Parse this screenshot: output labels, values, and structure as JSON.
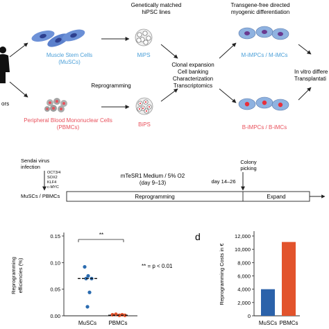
{
  "colors": {
    "musc_blue": "#4a9fd8",
    "pbmc_red": "#e8505b",
    "cell_blue": "#2d54a8",
    "bar_blue": "#2b62aa",
    "bar_orange": "#e2532c",
    "dot_blue": "#2b6cb0",
    "dot_orange": "#e2532c",
    "grey_cell": "#a8a8a8"
  },
  "top": {
    "matched_line1": "Genetically matched",
    "matched_line2": "hiPSC lines",
    "transgene_line1": "Transgene-free directed",
    "transgene_line2": "myogenic differentiation",
    "donors_partial": "ors",
    "musc_line1": "Muscle Stem Cells",
    "musc_line2": "(MuSCs)",
    "pbmc_line1": "Peripheral Blood Mononuclear Cells",
    "pbmc_line2": "(PBMCs)",
    "reprogramming": "Reprogramming",
    "mips": "MiPS",
    "bips": "BiPS",
    "steps": [
      "Clonal expansion",
      "Cell banking",
      "Characterization",
      "Transcriptomics"
    ],
    "m_impc": "M-iMPCs / M-iMCs",
    "b_impc": "B-iMPCs / B-iMCs",
    "invitro_line1": "In vitro differe",
    "invitro_line2": "Transplantati"
  },
  "timeline": {
    "sendai_line1": "Sendai virus",
    "sendai_line2": "infection",
    "factors": [
      "OCT3/4",
      "SOX2",
      "KLF4",
      "c-MYC"
    ],
    "medium_line1": "mTeSR1 Medium / 5% O2",
    "medium_line2": "(day 9–13)",
    "colony_line1": "Colony",
    "colony_line2": "picking",
    "days": "day 14–26",
    "start_label": "MuSCs / PBMCs",
    "seg1": "Reprogramming",
    "seg2": "Expand"
  },
  "scatter": {
    "ylabel_line1": "Reprogramming",
    "ylabel_line2": "efficiencies (%)",
    "yticks": [
      "0.00",
      "0.05",
      "0.10",
      "0.15"
    ],
    "categories": [
      "MuSCs",
      "PBMCs"
    ],
    "sig_mark": "**",
    "legend": "** = p < 0.01"
  },
  "bars": {
    "panel_letter": "d",
    "ylabel": "Reprogramming Costs in €",
    "yticks": [
      "0",
      "2,000",
      "4,000",
      "6,000",
      "8,000",
      "10,000",
      "12,000"
    ],
    "categories": [
      "MuSCs",
      "PBMCs"
    ]
  },
  "chart_data": [
    {
      "type": "scatter",
      "ylabel": "Reprogramming efficiencies (%)",
      "categories": [
        "MuSCs",
        "PBMCs"
      ],
      "ylim": [
        0,
        0.15
      ],
      "series": [
        {
          "values": [
            0.092,
            0.075,
            0.07,
            0.07,
            0.044,
            0.017
          ],
          "mean": 0.07
        },
        {
          "values": [
            0.002,
            0.003,
            0.001,
            0.002,
            0.001
          ],
          "mean": 0.001
        }
      ],
      "significance": "** = p < 0.01"
    },
    {
      "type": "bar",
      "ylabel": "Reprogramming Costs in €",
      "categories": [
        "MuSCs",
        "PBMCs"
      ],
      "values": [
        4000,
        11100
      ],
      "ylim": [
        0,
        12000
      ]
    }
  ]
}
